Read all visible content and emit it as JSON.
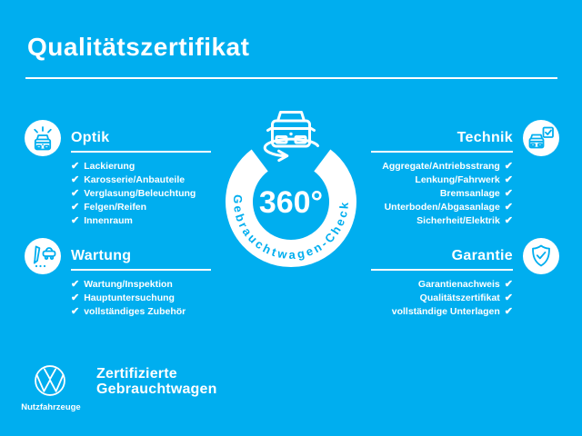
{
  "theme": {
    "background": "#00aeef",
    "foreground": "#ffffff"
  },
  "checkmark": "✔",
  "header": {
    "title": "Qualitätszertifikat"
  },
  "center": {
    "icon": "car-rotate-icon",
    "value": "360°",
    "ring_label": "Gebrauchtwagen-Check"
  },
  "sections": [
    {
      "id": "optik",
      "side": "left",
      "icon": "car-shine-icon",
      "title": "Optik",
      "items": [
        "Lackierung",
        "Karosserie/Anbauteile",
        "Verglasung/Beleuchtung",
        "Felgen/Reifen",
        "Innenraum"
      ]
    },
    {
      "id": "wartung",
      "side": "left",
      "icon": "service-checklist-icon",
      "title": "Wartung",
      "items": [
        "Wartung/Inspektion",
        "Hauptuntersuchung",
        "vollständiges Zubehör"
      ]
    },
    {
      "id": "technik",
      "side": "right",
      "icon": "car-inspection-icon",
      "title": "Technik",
      "items": [
        "Aggregate/Antriebsstrang",
        "Lenkung/Fahrwerk",
        "Bremsanlage",
        "Unterboden/Abgasanlage",
        "Sicherheit/Elektrik"
      ]
    },
    {
      "id": "garantie",
      "side": "right",
      "icon": "shield-check-icon",
      "title": "Garantie",
      "items": [
        "Garantienachweis",
        "Qualitätszertifikat",
        "vollständige Unterlagen"
      ]
    }
  ],
  "footer": {
    "logo": "vw-logo",
    "brand": "Nutzfahrzeuge",
    "tagline": [
      "Zertifizierte",
      "Gebrauchtwagen"
    ]
  }
}
